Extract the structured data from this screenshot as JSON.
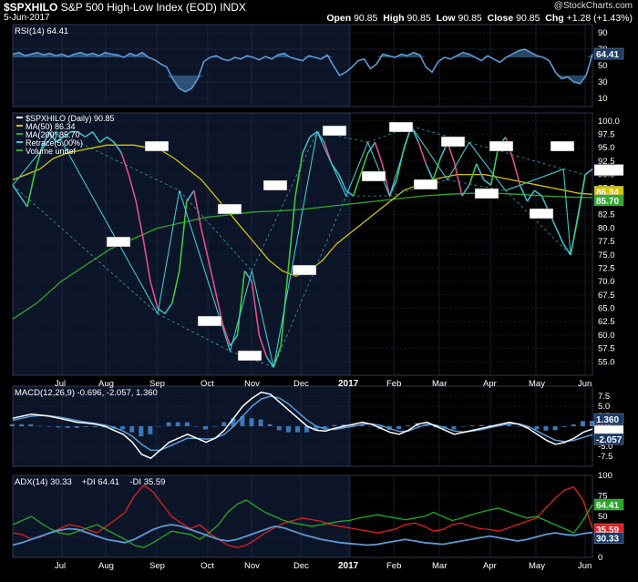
{
  "header": {
    "symbol": "$SPXHILO",
    "name": "S&P 500 High-Low Index (EOD)",
    "exchange": "INDX",
    "date": "5-Jun-2017",
    "watermark": "@StockCharts.com",
    "open_label": "Open",
    "open": "90.85",
    "high_label": "High",
    "high": "90.85",
    "low_label": "Low",
    "low": "90.85",
    "close_label": "Close",
    "close": "90.85",
    "chg_label": "Chg",
    "chg": "+1.28 (+1.43%)"
  },
  "colors": {
    "background": "#000000",
    "panel_left": "#0c1428",
    "panel_right": "#000000",
    "grid": "#2a3248",
    "rsi": "#5b9bd5",
    "price": "#3fb8c8",
    "ma50": "#d4c400",
    "ma200": "#2ea82e",
    "retrace": "#40c8d0",
    "pink": "#e0508a",
    "macd": "#ffffff",
    "macd_signal": "#5b9bd5",
    "adx": "#5b9bd5",
    "plus_di": "#22aa22",
    "minus_di": "#e02020"
  },
  "chart_data": [
    {
      "panel": "rsi",
      "type": "line",
      "legend": "RSI(14) 64.41",
      "ylim": [
        0,
        100
      ],
      "y_ticks": [
        "90",
        "70",
        "50",
        "30",
        "10"
      ],
      "last_value_label": "64.41",
      "series": [
        {
          "name": "RSI(14)",
          "values": [
            64,
            66,
            62,
            64,
            66,
            63,
            65,
            62,
            64,
            61,
            64,
            66,
            63,
            65,
            62,
            66,
            64,
            63,
            60,
            65,
            62,
            66,
            60,
            57,
            52,
            48,
            33,
            22,
            18,
            22,
            34,
            55,
            60,
            62,
            58,
            56,
            60,
            58,
            62,
            60,
            57,
            61,
            58,
            63,
            65,
            60,
            58,
            56,
            62,
            60,
            58,
            63,
            50,
            38,
            42,
            48,
            56,
            58,
            46,
            52,
            64,
            62,
            60,
            64,
            62,
            66,
            63,
            48,
            42,
            55,
            60,
            58,
            62,
            66,
            64,
            60,
            56,
            62,
            58,
            54,
            60,
            64,
            68,
            70,
            66,
            62,
            60,
            56,
            42,
            34,
            36,
            30,
            28,
            38,
            64
          ]
        }
      ]
    },
    {
      "panel": "price",
      "type": "line",
      "legend": [
        {
          "text": "$SPXHILO (Daily) 90.85",
          "color": "#ffffff"
        },
        {
          "text": "MA(50) 86.34",
          "color": "#d4c400"
        },
        {
          "text": "MA(200) 85.70",
          "color": "#2ea82e"
        },
        {
          "text": "Retrace(5.00%)",
          "color": "#40c8d0"
        },
        {
          "text": "Volume undef",
          "color": "#22aa22"
        }
      ],
      "ylim": [
        52.5,
        101.5
      ],
      "y_ticks": [
        "100.0",
        "97.5",
        "95.0",
        "92.5",
        "90.0",
        "87.5",
        "85.0",
        "82.5",
        "80.0",
        "77.5",
        "75.0",
        "72.5",
        "70.0",
        "67.5",
        "65.0",
        "62.5",
        "60.0",
        "57.5",
        "55.0"
      ],
      "x_ticks": [
        "Jul",
        "Aug",
        "Sep",
        "Oct",
        "Nov",
        "Dec",
        "2017",
        "Feb",
        "Mar",
        "Apr",
        "May",
        "Jun"
      ],
      "last_value_labels": [
        "90.85",
        "86.34",
        "85.70"
      ],
      "series": [
        {
          "name": "$SPXHILO",
          "values": [
            88,
            86,
            84,
            90,
            95,
            98,
            96,
            97,
            98,
            98,
            97,
            98,
            96,
            97,
            96,
            94,
            90,
            85,
            78,
            70,
            65,
            64,
            66,
            72,
            85,
            87,
            80,
            74,
            68,
            62,
            58,
            60,
            72,
            70,
            60,
            56,
            54,
            58,
            72,
            86,
            94,
            97,
            98,
            96,
            92,
            90,
            87,
            86,
            90,
            94,
            96,
            92,
            86,
            89,
            95,
            99,
            96,
            92,
            89,
            93,
            96,
            92,
            86,
            88,
            92,
            89,
            88,
            95,
            97,
            93,
            88,
            85,
            87,
            86,
            83,
            80,
            77,
            75,
            82,
            90,
            91
          ]
        },
        {
          "name": "MA(50)",
          "values": [
            89,
            90,
            91,
            93,
            94,
            94.5,
            95,
            95.5,
            95.5,
            95.5,
            95,
            94.5,
            93,
            91,
            89,
            86,
            83,
            80,
            77,
            74,
            72,
            71,
            72,
            74,
            77,
            79,
            81,
            83,
            85,
            87,
            88,
            89,
            89.5,
            90,
            90,
            90,
            89.5,
            89,
            88.5,
            88,
            87.5,
            87,
            86.5,
            86.3
          ]
        },
        {
          "name": "MA(200)",
          "values": [
            63,
            66,
            70,
            73,
            76,
            78,
            80,
            81,
            82,
            82.5,
            83,
            83.2,
            83.5,
            84,
            84.5,
            85,
            85.5,
            86,
            86.3,
            86.5,
            86.5,
            86.3,
            86,
            85.8,
            85.7
          ]
        }
      ],
      "retrace_points": [
        {
          "value": "2.349"
        },
        {
          "value": "0.645"
        },
        {
          "value": "1.312"
        },
        {
          "value": "0.544"
        },
        {
          "value": "1.152"
        },
        {
          "value": "2.296"
        },
        {
          "value": "0.256"
        },
        {
          "value": "0.872"
        },
        {
          "value": "1.021"
        },
        {
          "value": "1.255"
        },
        {
          "value": "1.263"
        },
        {
          "value": "0.455"
        },
        {
          "value": "1.084"
        },
        {
          "value": "1.681"
        },
        {
          "value": "1.568"
        },
        {
          "value": "0.770"
        }
      ]
    },
    {
      "panel": "macd",
      "type": "line",
      "legend": "MACD(12,26,9) -0.696, -2.057, 1.360",
      "ylim": [
        -10,
        10
      ],
      "y_ticks": [
        "7.5",
        "5.0",
        "2.5",
        "0.0",
        "-2.5",
        "-5.0",
        "-7.5"
      ],
      "last_value_labels": [
        "1.360",
        "-0.696",
        "-2.057"
      ],
      "series": [
        {
          "name": "MACD",
          "values": [
            2,
            2.5,
            3,
            2.8,
            2.5,
            2,
            1.5,
            1,
            0.8,
            0.5,
            0,
            -1,
            -2,
            -4,
            -7,
            -8,
            -6,
            -4,
            -3,
            -2,
            -3,
            -4,
            -3,
            -1,
            2,
            5,
            7,
            8.5,
            8,
            6,
            4,
            2,
            0,
            -1,
            -1.2,
            -0.5,
            0,
            0.5,
            1,
            0.5,
            -0.5,
            -1.5,
            -2,
            -1,
            0.5,
            1,
            0,
            -1,
            -2,
            -1.5,
            -1,
            -0.5,
            0,
            0.5,
            1,
            0.5,
            -0.5,
            -2,
            -3.5,
            -4.5,
            -4,
            -3,
            -1.5,
            -0.7
          ]
        },
        {
          "name": "Signal",
          "values": [
            1.5,
            2,
            2.5,
            2.7,
            2.6,
            2.3,
            1.9,
            1.4,
            1,
            0.7,
            0.3,
            -0.3,
            -1.2,
            -2.5,
            -4.5,
            -6,
            -6,
            -5,
            -4,
            -3,
            -3,
            -3.2,
            -3,
            -2,
            0,
            2.5,
            5,
            6.8,
            7.5,
            7,
            5.5,
            3.5,
            1.5,
            0,
            -0.7,
            -0.8,
            -0.4,
            0,
            0.5,
            0.6,
            0.2,
            -0.6,
            -1.3,
            -1.2,
            -0.3,
            0.5,
            0.3,
            -0.4,
            -1.2,
            -1.4,
            -1.2,
            -0.8,
            -0.3,
            0.2,
            0.6,
            0.6,
            0,
            -1.2,
            -2.4,
            -3.5,
            -3.8,
            -3.5,
            -2.8,
            -2.06
          ]
        },
        {
          "name": "Histogram",
          "values": [
            0.5,
            0.5,
            0.5,
            0.1,
            -0.1,
            -0.3,
            -0.4,
            -0.4,
            -0.2,
            -0.2,
            -0.3,
            -0.7,
            -0.8,
            -1.5,
            -2.5,
            -2,
            0,
            1,
            1,
            1,
            0,
            -0.8,
            0,
            1,
            2,
            2.5,
            2,
            1.7,
            0.5,
            -1,
            -1.5,
            -1.5,
            -1.5,
            -1,
            -0.5,
            0.3,
            0.4,
            0.5,
            0.5,
            -0.1,
            -0.7,
            -0.9,
            -0.7,
            0.2,
            0.8,
            0.5,
            -0.3,
            -0.6,
            -0.8,
            -0.1,
            0.2,
            0.3,
            0.3,
            0.3,
            0.4,
            -0.1,
            -0.5,
            -0.8,
            -1.1,
            -1,
            -0.2,
            0.5,
            1.3,
            1.36
          ]
        }
      ]
    },
    {
      "panel": "adx",
      "type": "line",
      "legend": [
        {
          "text": "ADX(14) 30.33",
          "color": "#ffffff"
        },
        {
          "text": "+DI 64.41",
          "color": "#22aa22"
        },
        {
          "text": "-DI 35.59",
          "color": "#e02020"
        }
      ],
      "ylim": [
        0,
        100
      ],
      "y_ticks": [
        "100",
        "75",
        "50",
        "25",
        "0"
      ],
      "last_value_labels": [
        "64.41",
        "35.59",
        "30.33"
      ],
      "series": [
        {
          "name": "ADX",
          "values": [
            15,
            18,
            22,
            26,
            30,
            33,
            35,
            34,
            30,
            26,
            22,
            20,
            18,
            22,
            28,
            34,
            38,
            40,
            38,
            34,
            30,
            26,
            22,
            20,
            22,
            26,
            30,
            34,
            38,
            36,
            32,
            28,
            25,
            22,
            20,
            18,
            17,
            16,
            15,
            16,
            18,
            20,
            22,
            20,
            18,
            17,
            16,
            18,
            20,
            22,
            24,
            26,
            24,
            22,
            20,
            22,
            25,
            28,
            30,
            28,
            27,
            29,
            30.33
          ]
        },
        {
          "name": "+DI",
          "values": [
            40,
            45,
            50,
            42,
            35,
            30,
            28,
            32,
            36,
            40,
            34,
            28,
            22,
            15,
            12,
            18,
            25,
            32,
            30,
            28,
            22,
            30,
            40,
            55,
            65,
            70,
            62,
            55,
            50,
            45,
            42,
            40,
            38,
            40,
            42,
            44,
            45,
            48,
            50,
            52,
            50,
            48,
            46,
            48,
            50,
            55,
            50,
            45,
            48,
            52,
            55,
            58,
            60,
            56,
            52,
            48,
            50,
            45,
            40,
            35,
            30,
            45,
            64.41
          ]
        },
        {
          "name": "-DI",
          "values": [
            30,
            28,
            22,
            25,
            30,
            35,
            40,
            38,
            34,
            30,
            38,
            46,
            55,
            75,
            88,
            80,
            65,
            50,
            42,
            35,
            40,
            30,
            22,
            15,
            12,
            15,
            22,
            30,
            36,
            42,
            45,
            48,
            46,
            44,
            40,
            38,
            36,
            34,
            32,
            30,
            32,
            35,
            40,
            42,
            38,
            32,
            34,
            40,
            42,
            38,
            35,
            34,
            32,
            36,
            40,
            44,
            48,
            60,
            72,
            82,
            86,
            70,
            35.59
          ]
        }
      ]
    }
  ]
}
